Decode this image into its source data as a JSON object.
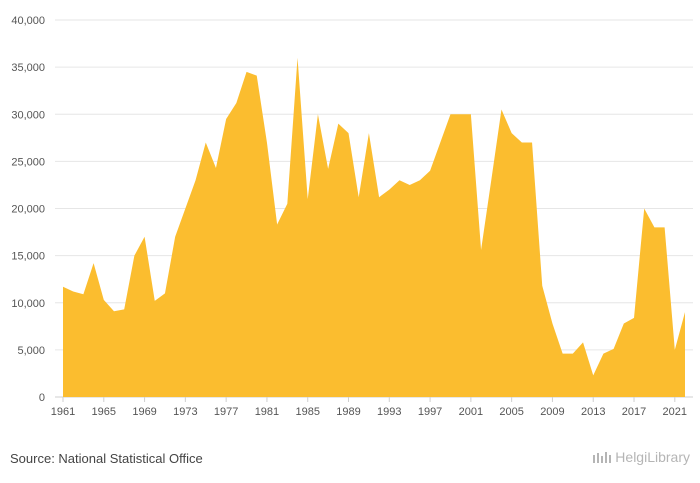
{
  "chart_data": {
    "type": "area",
    "x": [
      1961,
      1962,
      1963,
      1964,
      1965,
      1966,
      1967,
      1968,
      1969,
      1970,
      1971,
      1972,
      1973,
      1974,
      1975,
      1976,
      1977,
      1978,
      1979,
      1980,
      1981,
      1982,
      1983,
      1984,
      1985,
      1986,
      1987,
      1988,
      1989,
      1990,
      1991,
      1992,
      1993,
      1994,
      1995,
      1996,
      1997,
      1998,
      1999,
      2000,
      2001,
      2002,
      2003,
      2004,
      2005,
      2006,
      2007,
      2008,
      2009,
      2010,
      2011,
      2012,
      2013,
      2014,
      2015,
      2016,
      2017,
      2018,
      2019,
      2020,
      2021,
      2022
    ],
    "values": [
      11700,
      11200,
      10900,
      14200,
      10300,
      9100,
      9300,
      15000,
      17000,
      10200,
      11000,
      17000,
      20000,
      23000,
      27000,
      24300,
      29500,
      31200,
      34500,
      34100,
      27000,
      18300,
      20500,
      36000,
      21000,
      30000,
      24200,
      29000,
      28000,
      21200,
      28000,
      21200,
      22000,
      23000,
      22500,
      23000,
      24000,
      27000,
      30000,
      30000,
      30000,
      15600,
      23000,
      30500,
      28000,
      27000,
      27000,
      11800,
      7800,
      4600,
      4600,
      5800,
      2300,
      4600,
      5100,
      7800,
      8400,
      20000,
      18000,
      18000,
      5000,
      9000
    ],
    "xticks": [
      "1961",
      "1965",
      "1969",
      "1973",
      "1977",
      "1981",
      "1985",
      "1989",
      "1993",
      "1997",
      "2001",
      "2005",
      "2009",
      "2013",
      "2017",
      "2021"
    ],
    "yticks": [
      "0",
      "5,000",
      "10,000",
      "15,000",
      "20,000",
      "25,000",
      "30,000",
      "35,000",
      "40,000"
    ],
    "ylim": [
      0,
      40000
    ],
    "grid": true,
    "color": "#fbbd2f"
  },
  "footer": {
    "source": "Source: National Statistical Office",
    "logo": "HelgiLibrary"
  }
}
